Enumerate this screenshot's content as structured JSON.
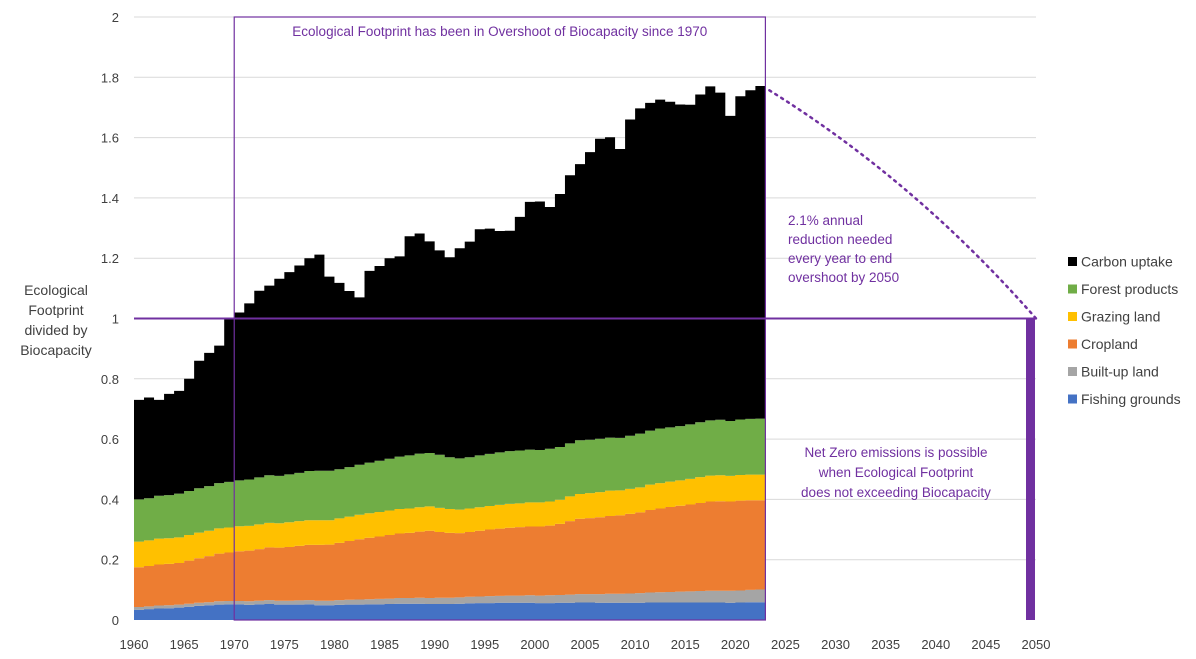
{
  "chart_data": {
    "type": "area",
    "stacked": true,
    "grid": true,
    "legend_placement": "right",
    "ylabel": [
      "Ecological",
      "Footprint",
      "divided by",
      "Biocapacity"
    ],
    "ylim": [
      0,
      2
    ],
    "xlim": [
      1960,
      2050
    ],
    "yticks": [
      "0",
      "0.2",
      "0.4",
      "0.6",
      "0.8",
      "1",
      "1.2",
      "1.4",
      "1.6",
      "1.8",
      "2"
    ],
    "xticks": [
      "1960",
      "1965",
      "1970",
      "1975",
      "1980",
      "1985",
      "1990",
      "1995",
      "2000",
      "2005",
      "2010",
      "2015",
      "2020",
      "2025",
      "2030",
      "2035",
      "2040",
      "2045",
      "2050"
    ],
    "x": [
      1961,
      1962,
      1963,
      1964,
      1965,
      1966,
      1967,
      1968,
      1969,
      1970,
      1971,
      1972,
      1973,
      1974,
      1975,
      1976,
      1977,
      1978,
      1979,
      1980,
      1981,
      1982,
      1983,
      1984,
      1985,
      1986,
      1987,
      1988,
      1989,
      1990,
      1991,
      1992,
      1993,
      1994,
      1995,
      1996,
      1997,
      1998,
      1999,
      2000,
      2001,
      2002,
      2003,
      2004,
      2005,
      2006,
      2007,
      2008,
      2009,
      2010,
      2011,
      2012,
      2013,
      2014,
      2015,
      2016,
      2017,
      2018,
      2019,
      2020,
      2021,
      2022,
      2023
    ],
    "series": [
      {
        "name": "Fishing grounds",
        "color": "#4472c4",
        "values": [
          0.034,
          0.036,
          0.038,
          0.039,
          0.041,
          0.044,
          0.047,
          0.049,
          0.051,
          0.052,
          0.052,
          0.05,
          0.052,
          0.053,
          0.051,
          0.051,
          0.051,
          0.052,
          0.049,
          0.049,
          0.05,
          0.051,
          0.051,
          0.052,
          0.052,
          0.053,
          0.054,
          0.054,
          0.054,
          0.053,
          0.053,
          0.053,
          0.054,
          0.055,
          0.056,
          0.056,
          0.057,
          0.057,
          0.057,
          0.057,
          0.056,
          0.056,
          0.057,
          0.057,
          0.058,
          0.058,
          0.057,
          0.057,
          0.057,
          0.057,
          0.057,
          0.058,
          0.058,
          0.058,
          0.058,
          0.058,
          0.058,
          0.058,
          0.058,
          0.057,
          0.058,
          0.059,
          0.059
        ]
      },
      {
        "name": "Built-up land",
        "color": "#a5a5a5",
        "values": [
          0.009,
          0.009,
          0.01,
          0.01,
          0.01,
          0.01,
          0.01,
          0.01,
          0.011,
          0.011,
          0.011,
          0.012,
          0.012,
          0.013,
          0.013,
          0.013,
          0.014,
          0.014,
          0.015,
          0.015,
          0.016,
          0.016,
          0.017,
          0.017,
          0.018,
          0.018,
          0.019,
          0.019,
          0.02,
          0.02,
          0.021,
          0.021,
          0.021,
          0.022,
          0.022,
          0.023,
          0.023,
          0.024,
          0.024,
          0.025,
          0.025,
          0.026,
          0.026,
          0.027,
          0.028,
          0.028,
          0.029,
          0.03,
          0.03,
          0.031,
          0.032,
          0.033,
          0.034,
          0.035,
          0.036,
          0.037,
          0.038,
          0.039,
          0.039,
          0.04,
          0.04,
          0.041,
          0.042
        ]
      },
      {
        "name": "Cropland",
        "color": "#ed7d31",
        "values": [
          0.132,
          0.134,
          0.136,
          0.137,
          0.138,
          0.143,
          0.148,
          0.153,
          0.158,
          0.161,
          0.165,
          0.168,
          0.171,
          0.175,
          0.176,
          0.178,
          0.181,
          0.183,
          0.185,
          0.186,
          0.19,
          0.195,
          0.2,
          0.204,
          0.207,
          0.211,
          0.214,
          0.216,
          0.219,
          0.223,
          0.218,
          0.215,
          0.213,
          0.215,
          0.218,
          0.221,
          0.223,
          0.225,
          0.227,
          0.228,
          0.229,
          0.231,
          0.236,
          0.244,
          0.25,
          0.252,
          0.255,
          0.258,
          0.26,
          0.264,
          0.268,
          0.274,
          0.278,
          0.282,
          0.285,
          0.288,
          0.292,
          0.296,
          0.297,
          0.296,
          0.298,
          0.297,
          0.296
        ]
      },
      {
        "name": "Grazing land",
        "color": "#ffc000",
        "values": [
          0.085,
          0.085,
          0.086,
          0.085,
          0.085,
          0.085,
          0.085,
          0.084,
          0.084,
          0.083,
          0.083,
          0.082,
          0.082,
          0.081,
          0.081,
          0.082,
          0.082,
          0.082,
          0.082,
          0.081,
          0.081,
          0.081,
          0.081,
          0.081,
          0.081,
          0.081,
          0.081,
          0.081,
          0.081,
          0.081,
          0.08,
          0.079,
          0.078,
          0.078,
          0.078,
          0.078,
          0.079,
          0.079,
          0.079,
          0.08,
          0.08,
          0.08,
          0.08,
          0.082,
          0.082,
          0.083,
          0.083,
          0.084,
          0.083,
          0.083,
          0.083,
          0.084,
          0.084,
          0.084,
          0.084,
          0.085,
          0.086,
          0.086,
          0.086,
          0.085,
          0.085,
          0.085,
          0.085
        ]
      },
      {
        "name": "Forest products",
        "color": "#70ad47",
        "values": [
          0.14,
          0.14,
          0.142,
          0.143,
          0.145,
          0.146,
          0.147,
          0.148,
          0.15,
          0.151,
          0.152,
          0.154,
          0.156,
          0.158,
          0.157,
          0.159,
          0.16,
          0.163,
          0.164,
          0.164,
          0.163,
          0.164,
          0.166,
          0.168,
          0.17,
          0.172,
          0.174,
          0.176,
          0.178,
          0.177,
          0.176,
          0.172,
          0.17,
          0.17,
          0.172,
          0.173,
          0.174,
          0.175,
          0.175,
          0.175,
          0.174,
          0.175,
          0.175,
          0.176,
          0.178,
          0.177,
          0.177,
          0.176,
          0.174,
          0.176,
          0.178,
          0.179,
          0.181,
          0.18,
          0.18,
          0.181,
          0.182,
          0.183,
          0.184,
          0.182,
          0.184,
          0.185,
          0.186
        ]
      },
      {
        "name": "Carbon uptake",
        "color": "#000000",
        "values": [
          0.33,
          0.334,
          0.318,
          0.336,
          0.341,
          0.372,
          0.423,
          0.442,
          0.456,
          0.54,
          0.557,
          0.584,
          0.619,
          0.629,
          0.654,
          0.671,
          0.688,
          0.706,
          0.717,
          0.644,
          0.618,
          0.584,
          0.555,
          0.636,
          0.646,
          0.665,
          0.664,
          0.727,
          0.73,
          0.702,
          0.678,
          0.663,
          0.697,
          0.715,
          0.75,
          0.747,
          0.734,
          0.731,
          0.775,
          0.822,
          0.824,
          0.802,
          0.839,
          0.889,
          0.916,
          0.954,
          0.995,
          0.996,
          0.958,
          1.049,
          1.079,
          1.087,
          1.091,
          1.08,
          1.067,
          1.06,
          1.087,
          1.108,
          1.085,
          1.012,
          1.072,
          1.09,
          1.103
        ]
      }
    ],
    "target_line": {
      "y": 1,
      "x": [
        1960,
        2050
      ]
    },
    "overshoot_box": {
      "x": [
        1970,
        2023
      ],
      "y": [
        0,
        2
      ]
    },
    "reduction_path": {
      "x": [
        2023,
        2050
      ],
      "y": [
        1.77,
        1.0
      ]
    },
    "end_bar": {
      "x": 2050,
      "y": 1.0
    },
    "annotations": {
      "overshoot": "Ecological Footprint has been in Overshoot of Biocapacity since 1970",
      "reduction": [
        "2.1% annual",
        "reduction  needed",
        "every year to end",
        "overshoot  by 2050"
      ],
      "net_zero": [
        "Net Zero emissions is possible",
        "when Ecological Footprint",
        "does not exceeding Biocapacity"
      ]
    },
    "colors": {
      "annotation": "#7030a0",
      "grid": "#d9d9d9",
      "axis_text": "#404040"
    }
  }
}
